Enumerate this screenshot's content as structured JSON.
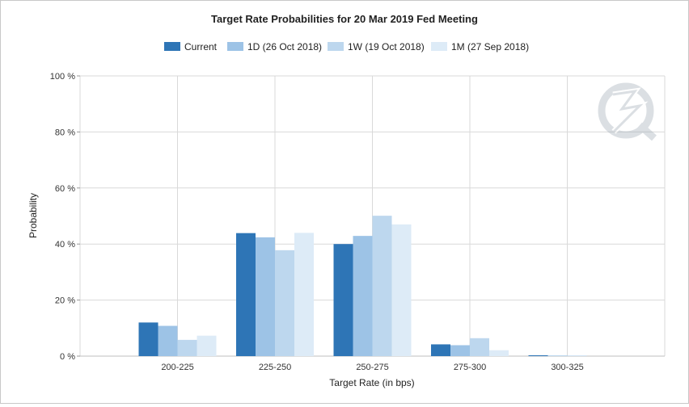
{
  "chart_data": {
    "type": "bar",
    "title": "Target Rate Probabilities for 20 Mar 2019 Fed Meeting",
    "xlabel": "Target Rate (in bps)",
    "ylabel": "Probability",
    "ylim": [
      0,
      100
    ],
    "yticks": [
      0,
      20,
      40,
      60,
      80,
      100
    ],
    "ytick_labels": [
      "0 %",
      "20 %",
      "40 %",
      "60 %",
      "80 %",
      "100 %"
    ],
    "categories": [
      "200-225",
      "225-250",
      "250-275",
      "275-300",
      "300-325"
    ],
    "series": [
      {
        "name": "Current",
        "color": "#2e75b6",
        "values": [
          12.0,
          43.9,
          40.0,
          4.2,
          0.3
        ]
      },
      {
        "name": "1D (26 Oct 2018)",
        "color": "#9dc3e6",
        "values": [
          10.8,
          42.4,
          42.9,
          3.9,
          0.2
        ]
      },
      {
        "name": "1W (19 Oct 2018)",
        "color": "#bdd7ee",
        "values": [
          5.8,
          37.8,
          50.1,
          6.4,
          0.2
        ]
      },
      {
        "name": "1M (27 Sep 2018)",
        "color": "#ddebf7",
        "values": [
          7.3,
          44.0,
          47.0,
          2.1,
          0.0
        ]
      }
    ],
    "grid": true,
    "legend_position": "top-center"
  },
  "watermark": {
    "icon": "cme-fedwatch-logo-icon"
  }
}
